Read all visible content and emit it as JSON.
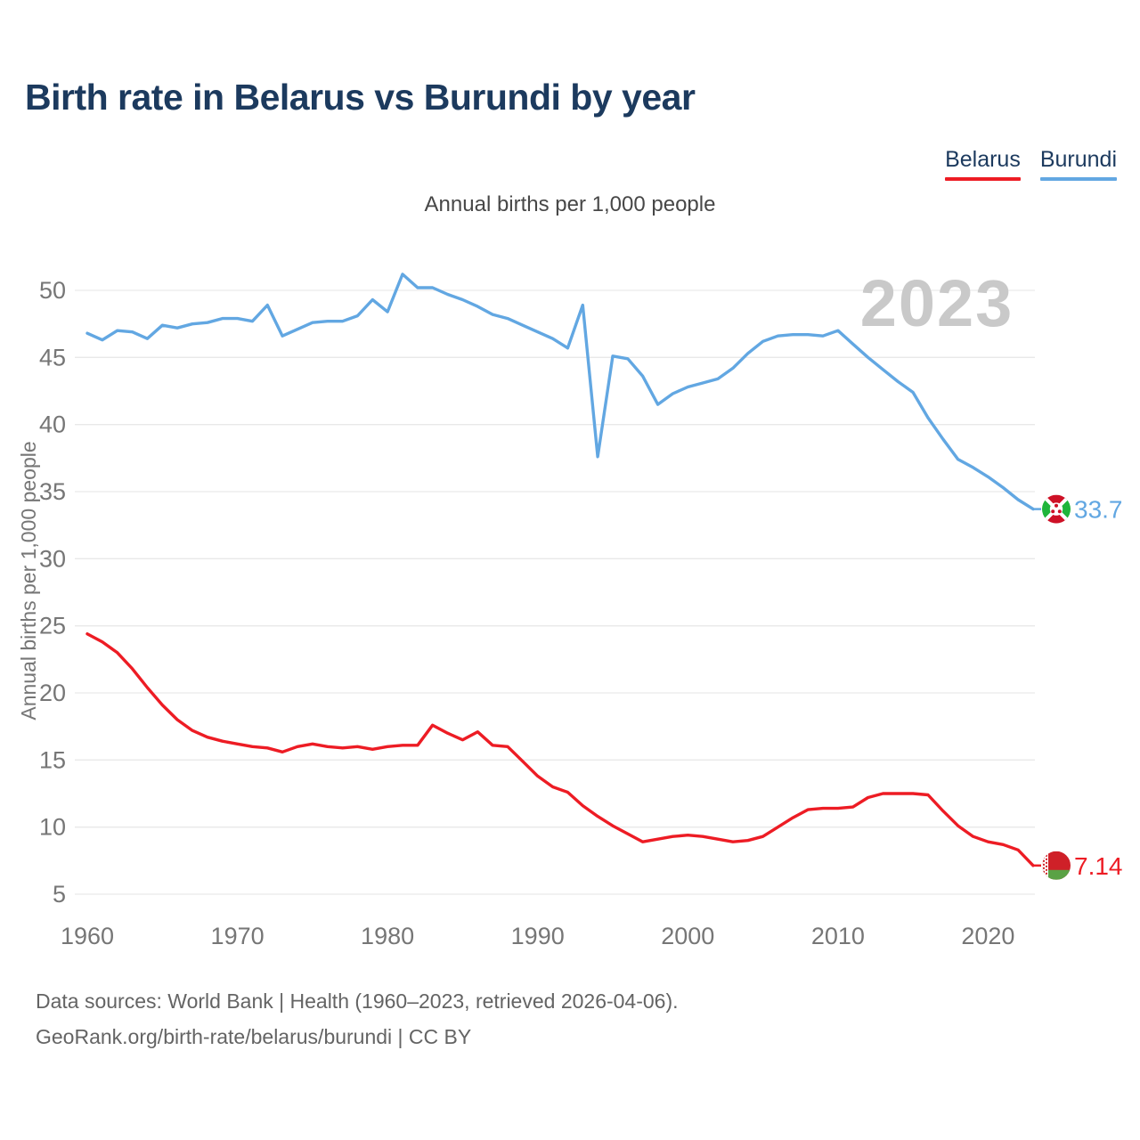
{
  "title": "Birth rate in Belarus vs Burundi by year",
  "subtitle": "Annual births per 1,000 people",
  "watermark": "2023",
  "legend": {
    "items": [
      {
        "label": "Belarus",
        "color": "#ed1c24"
      },
      {
        "label": "Burundi",
        "color": "#62a7e2"
      }
    ]
  },
  "footer": {
    "line1": "Data sources: World Bank | Health (1960–2023, retrieved 2026-04-06).",
    "line2": "GeoRank.org/birth-rate/belarus/burundi | CC BY"
  },
  "chart_data": {
    "type": "line",
    "title": "Birth rate in Belarus vs Burundi by year",
    "subtitle": "Annual births per 1,000 people",
    "xlabel": "",
    "ylabel": "Annual births per 1,000 people",
    "xlim": [
      1960,
      2023
    ],
    "ylim": [
      3.5,
      52.5
    ],
    "xticks": [
      1960,
      1970,
      1980,
      1990,
      2000,
      2010,
      2020
    ],
    "yticks": [
      5,
      10,
      15,
      20,
      25,
      30,
      35,
      40,
      45,
      50
    ],
    "grid": "horizontal",
    "legend_position": "top-right",
    "watermark_year": "2023",
    "years": [
      1960,
      1961,
      1962,
      1963,
      1964,
      1965,
      1966,
      1967,
      1968,
      1969,
      1970,
      1971,
      1972,
      1973,
      1974,
      1975,
      1976,
      1977,
      1978,
      1979,
      1980,
      1981,
      1982,
      1983,
      1984,
      1985,
      1986,
      1987,
      1988,
      1989,
      1990,
      1991,
      1992,
      1993,
      1994,
      1995,
      1996,
      1997,
      1998,
      1999,
      2000,
      2001,
      2002,
      2003,
      2004,
      2005,
      2006,
      2007,
      2008,
      2009,
      2010,
      2011,
      2012,
      2013,
      2014,
      2015,
      2016,
      2017,
      2018,
      2019,
      2020,
      2021,
      2022,
      2023
    ],
    "series": [
      {
        "name": "Belarus",
        "color": "#ed1c24",
        "end_label": "7.14",
        "values": [
          24.4,
          23.8,
          23.0,
          21.8,
          20.4,
          19.1,
          18.0,
          17.2,
          16.7,
          16.4,
          16.2,
          16.0,
          15.9,
          15.6,
          16.0,
          16.2,
          16.0,
          15.9,
          16.0,
          15.8,
          16.0,
          16.1,
          16.1,
          17.6,
          17.0,
          16.5,
          17.1,
          16.1,
          16.0,
          14.9,
          13.8,
          13.0,
          12.6,
          11.6,
          10.8,
          10.1,
          9.5,
          8.9,
          9.1,
          9.3,
          9.4,
          9.3,
          9.1,
          8.9,
          9.0,
          9.3,
          10.0,
          10.7,
          11.3,
          11.4,
          11.4,
          11.5,
          12.2,
          12.5,
          12.5,
          12.5,
          12.4,
          11.2,
          10.1,
          9.3,
          8.9,
          8.7,
          8.3,
          7.14
        ]
      },
      {
        "name": "Burundi",
        "color": "#62a7e2",
        "end_label": "33.7",
        "values": [
          46.8,
          46.3,
          47.0,
          46.9,
          46.4,
          47.4,
          47.2,
          47.5,
          47.6,
          47.9,
          47.9,
          47.7,
          48.9,
          46.6,
          47.1,
          47.6,
          47.7,
          47.7,
          48.1,
          49.3,
          48.4,
          51.2,
          50.2,
          50.2,
          49.7,
          49.3,
          48.8,
          48.2,
          47.9,
          47.4,
          46.9,
          46.4,
          45.7,
          48.9,
          37.6,
          45.1,
          44.9,
          43.6,
          41.5,
          42.3,
          42.8,
          43.1,
          43.4,
          44.2,
          45.3,
          46.2,
          46.6,
          46.7,
          46.7,
          46.6,
          47.0,
          46.0,
          45.0,
          44.1,
          43.2,
          42.4,
          40.5,
          38.9,
          37.4,
          36.8,
          36.1,
          35.3,
          34.4,
          33.7
        ]
      }
    ]
  }
}
